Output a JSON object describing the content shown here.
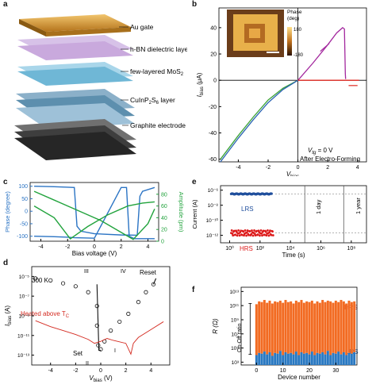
{
  "panel_labels": {
    "a": "a",
    "b": "b",
    "c": "c",
    "d": "d",
    "e": "e",
    "f": "f"
  },
  "panel_a": {
    "labels": [
      "Au gate",
      "h-BN dielectric layer",
      "few-layered MoS",
      "CuInP",
      "S",
      "6",
      " layer",
      "Graphite electrode",
      "2"
    ],
    "layer_au": "Au gate",
    "layer_hbn": "h-BN dielectric layer",
    "layer_mos2_main": "few-layered MoS",
    "layer_mos2_sub": "2",
    "layer_cips_main": "CuInP",
    "layer_cips_sub1": "2",
    "layer_cips_mid": "S",
    "layer_cips_sub2": "6",
    "layer_cips_end": " layer",
    "layer_graphite": "Graphite electrode"
  },
  "panel_b": {
    "inset_title": "Phase",
    "inset_unit": "(deg)",
    "inset_max": "180",
    "inset_min": "-180",
    "annotation_vg": "V",
    "annotation_vg_sub": "tg",
    "annotation_vg_val": " = 0 V",
    "annotation_after": "After Electro-Forming"
  },
  "panel_e": {
    "lrs": "LRS",
    "hrs": "HRS",
    "day": "1 day",
    "year": "1 year"
  },
  "panel_d": {
    "temp": "300 K",
    "heated": "Heated above T",
    "heated_sub": "C",
    "set": "Set",
    "reset": "Reset",
    "roman": [
      "I",
      "II",
      "III",
      "IV"
    ]
  },
  "panel_f": {
    "hrs": "HRS",
    "lrs": "LRS",
    "onoff": "On-Off ratio"
  },
  "chart_data": [
    {
      "id": "b",
      "type": "line",
      "xlabel": "V",
      "xlabel_sub": "bias",
      "ylabel": "I",
      "ylabel_sub": "bias",
      "ylabel_unit": " (μA)",
      "xlim": [
        -5.3,
        4.6
      ],
      "ylim": [
        -62,
        55
      ],
      "xticks": [
        -4,
        -2,
        0,
        2,
        4
      ],
      "yticks": [
        -60,
        -40,
        -20,
        0,
        20,
        40
      ],
      "series": [
        {
          "name": "sweep-green",
          "color": "#3aa335",
          "x": [
            -5.2,
            -4,
            -3,
            -2,
            -1,
            0
          ],
          "y": [
            -60,
            -42,
            -28,
            -15,
            -6,
            0
          ]
        },
        {
          "name": "sweep-blue",
          "color": "#2a63b3",
          "x": [
            -5.2,
            -4,
            -3,
            -2,
            -1,
            0
          ],
          "y": [
            -62,
            -44,
            -30,
            -17,
            -7,
            0
          ]
        },
        {
          "name": "sweep-purple",
          "color": "#a3289e",
          "x": [
            0,
            1,
            2,
            2.6,
            3.0,
            3.12,
            3.18,
            3.2
          ],
          "y": [
            0,
            13,
            27,
            36,
            40,
            39,
            5,
            1
          ]
        },
        {
          "name": "sweep-red",
          "color": "#e02a22",
          "x": [
            0,
            3.2,
            4.1
          ],
          "y": [
            0,
            0,
            0
          ]
        }
      ]
    },
    {
      "id": "c",
      "type": "line",
      "xlabel": "Bias voltage (V)",
      "ylabel": "Phase (degree)",
      "y2label": "Amplitude (pm)",
      "xlim": [
        -4.8,
        4.8
      ],
      "ylim": [
        -120,
        115
      ],
      "y2lim": [
        0,
        100
      ],
      "xticks": [
        -4,
        -2,
        0,
        2,
        4
      ],
      "yticks": [
        -100,
        -50,
        0,
        50,
        100
      ],
      "y2ticks": [
        0,
        20,
        40,
        60,
        80
      ],
      "series": [
        {
          "name": "phase-fwd",
          "axis": "left",
          "color": "#2b74c4",
          "x": [
            -4.5,
            -3,
            -2,
            -1.5,
            -1.3,
            -1,
            0,
            2,
            3.2,
            3.4,
            3.6,
            4.5
          ],
          "y": [
            100,
            98,
            96,
            95,
            -60,
            -80,
            -90,
            -95,
            -96,
            60,
            80,
            95
          ]
        },
        {
          "name": "phase-rev",
          "axis": "left",
          "color": "#2b74c4",
          "x": [
            -4.5,
            -3,
            -2,
            -1.5,
            0,
            2,
            2.4,
            2.6,
            3,
            4.5
          ],
          "y": [
            -100,
            -102,
            -104,
            -106,
            -108,
            95,
            95,
            -100,
            -110,
            -110
          ]
        },
        {
          "name": "amp-up",
          "axis": "right",
          "color": "#22a33d",
          "x": [
            -4.5,
            -3,
            -1.8,
            -0.5,
            1,
            2.5,
            3.6,
            4.5
          ],
          "y": [
            60,
            40,
            4,
            25,
            45,
            60,
            65,
            67
          ]
        },
        {
          "name": "amp-down",
          "axis": "right",
          "color": "#22a33d",
          "x": [
            -4.5,
            -3,
            -1,
            0.5,
            2,
            2.9,
            4,
            4.5
          ],
          "y": [
            85,
            70,
            50,
            35,
            15,
            3,
            30,
            55
          ]
        }
      ]
    },
    {
      "id": "e",
      "type": "scatter",
      "xlabel": "Time (s)",
      "ylabel": "Current (A)",
      "xscale": "log",
      "yscale": "log",
      "xtick_labels": [
        "10⁰",
        "10²",
        "10⁴",
        "10⁶",
        "10⁸"
      ],
      "ytick_labels": [
        "10⁻¹²",
        "10⁻¹⁰",
        "10⁻⁸",
        "10⁻⁶"
      ],
      "series": [
        {
          "name": "LRS",
          "color": "#1f4e9c",
          "x_range": [
            1,
            800
          ],
          "y": "~3e-7"
        },
        {
          "name": "HRS",
          "color": "#dd1b1b",
          "x_range": [
            1,
            800
          ],
          "y": "~1e-12 to 1e-11"
        }
      ]
    },
    {
      "id": "d",
      "type": "line",
      "xlabel": "V",
      "xlabel_sub": "bias",
      "xlabel_unit": " (V)",
      "ylabel": "I",
      "ylabel_sub": "bias",
      "ylabel_unit": " (A)",
      "yscale": "log",
      "xlim": [
        -5.5,
        5.5
      ],
      "xticks": [
        -4,
        -2,
        0,
        2,
        4
      ],
      "ytick_labels": [
        "10⁻⁵",
        "10⁻⁷",
        "10⁻⁹",
        "10⁻¹¹",
        "10⁻¹³"
      ]
    },
    {
      "id": "f",
      "type": "bar",
      "xlabel": "Device number",
      "ylabel": "R (Ω)",
      "yscale": "log",
      "xticks": [
        0,
        10,
        20,
        30
      ],
      "ytick_labels": [
        "10³",
        "10⁵",
        "10⁷",
        "10⁹",
        "10¹¹",
        "10¹³"
      ],
      "series": [
        {
          "name": "HRS",
          "color": "#f26b22",
          "values_log10_top": [
            11.2,
            11.6,
            11.5,
            11.8,
            11.4,
            11.7,
            11.3,
            11.6,
            11.5,
            11.7,
            11.4,
            11.8,
            11.5,
            11.6,
            11.3,
            11.7,
            11.5,
            11.8,
            11.4,
            11.6,
            11.5,
            11.7,
            11.3,
            11.6,
            11.4,
            11.8,
            11.5,
            11.7,
            11.6,
            11.4,
            11.7,
            11.5,
            11.8,
            11.6,
            11.3,
            11.7,
            11.5,
            11.6
          ]
        },
        {
          "name": "LRS",
          "color": "#2a79c2",
          "values_log10_top": [
            4.0,
            4.3,
            4.2,
            4.5,
            4.1,
            4.4,
            3.9,
            4.3,
            4.2,
            4.6,
            4.0,
            4.4,
            4.2,
            4.3,
            4.1,
            4.5,
            4.0,
            4.4,
            4.2,
            4.3,
            4.1,
            4.5,
            4.0,
            4.3,
            4.2,
            4.4,
            4.1,
            4.6,
            4.0,
            4.3,
            4.2,
            4.5,
            4.1,
            4.4,
            4.0,
            4.3,
            4.2,
            4.4
          ]
        }
      ]
    }
  ]
}
